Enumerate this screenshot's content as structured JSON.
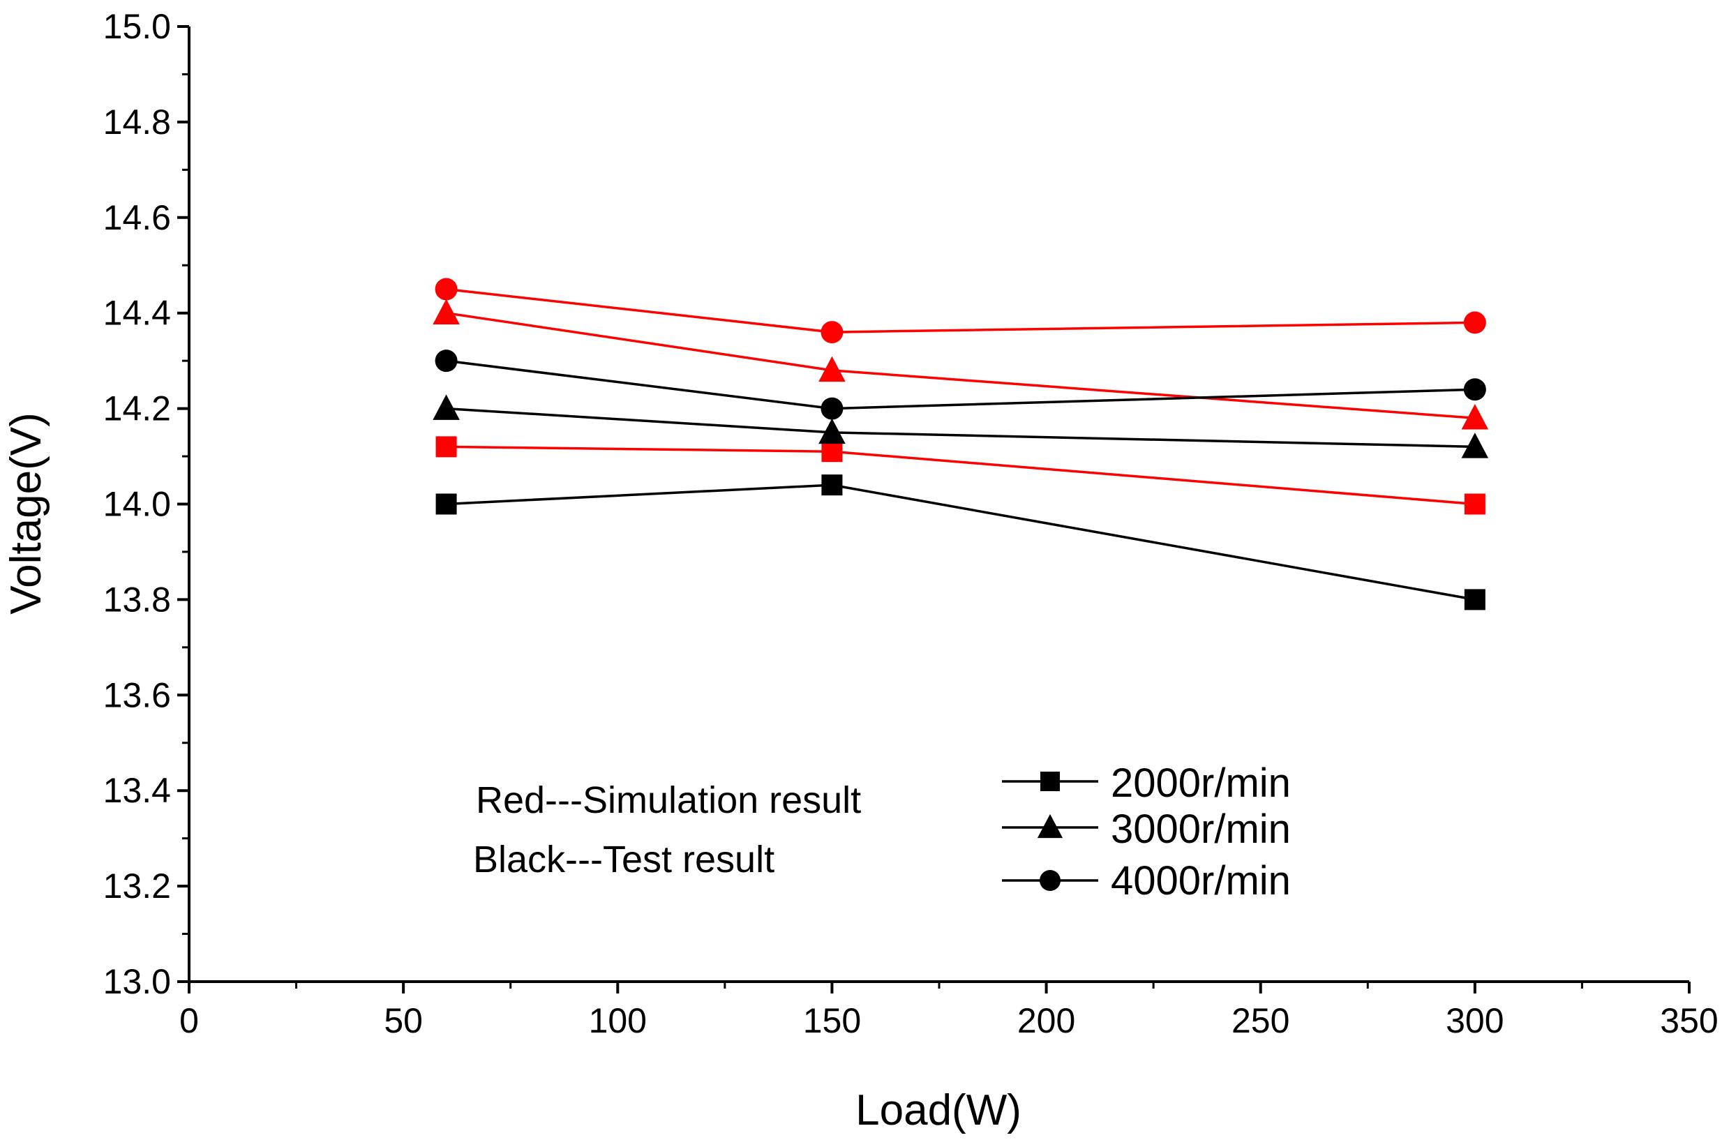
{
  "chart_data": {
    "type": "line",
    "title": "",
    "xlabel": "Load(W)",
    "ylabel": "Voltage(V)",
    "xlim": [
      0,
      350
    ],
    "ylim": [
      13.0,
      15.0
    ],
    "x_ticks": [
      "0",
      "50",
      "100",
      "150",
      "200",
      "250",
      "300",
      "350"
    ],
    "y_ticks": [
      "13.0",
      "13.2",
      "13.4",
      "13.6",
      "13.8",
      "14.0",
      "14.2",
      "14.4",
      "14.6",
      "14.8",
      "15.0"
    ],
    "x": [
      60,
      150,
      300
    ],
    "series": [
      {
        "name": "2000r/min Simulation",
        "speed": "2000r/min",
        "source": "Simulation result",
        "color": "#ff0000",
        "marker": "square",
        "values": [
          14.12,
          14.11,
          14.0
        ]
      },
      {
        "name": "3000r/min Simulation",
        "speed": "3000r/min",
        "source": "Simulation result",
        "color": "#ff0000",
        "marker": "triangle",
        "values": [
          14.4,
          14.28,
          14.18
        ]
      },
      {
        "name": "4000r/min Simulation",
        "speed": "4000r/min",
        "source": "Simulation result",
        "color": "#ff0000",
        "marker": "circle",
        "values": [
          14.45,
          14.36,
          14.38
        ]
      },
      {
        "name": "2000r/min Test",
        "speed": "2000r/min",
        "source": "Test result",
        "color": "#000000",
        "marker": "square",
        "values": [
          14.0,
          14.04,
          13.8
        ]
      },
      {
        "name": "3000r/min Test",
        "speed": "3000r/min",
        "source": "Test result",
        "color": "#000000",
        "marker": "triangle",
        "values": [
          14.2,
          14.15,
          14.12
        ]
      },
      {
        "name": "4000r/min Test",
        "speed": "4000r/min",
        "source": "Test result",
        "color": "#000000",
        "marker": "circle",
        "values": [
          14.3,
          14.2,
          14.24
        ]
      }
    ],
    "legend": {
      "placement": "bottom-right",
      "entries": [
        {
          "label": "2000r/min",
          "marker": "square"
        },
        {
          "label": "3000r/min",
          "marker": "triangle"
        },
        {
          "label": "4000r/min",
          "marker": "circle"
        }
      ]
    },
    "annotations": [
      "Red---Simulation result",
      "Black---Test result"
    ]
  }
}
